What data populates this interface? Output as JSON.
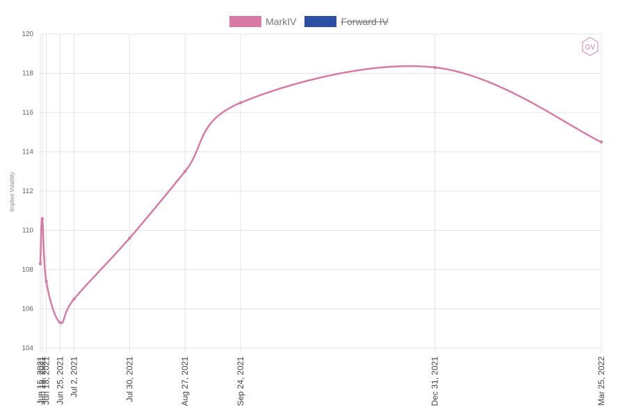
{
  "legend": {
    "items": [
      {
        "label": "MarkIV",
        "color": "#d97aa6",
        "hidden": false
      },
      {
        "label": "Forward IV",
        "color": "#2c4fa3",
        "hidden": true
      }
    ]
  },
  "logo": {
    "text": "GV",
    "color": "#d97aa6"
  },
  "chart_data": {
    "type": "line",
    "ylabel": "Implied Volatility",
    "xlabel": "",
    "ylim": [
      104,
      120
    ],
    "yticks": [
      104,
      106,
      108,
      110,
      112,
      114,
      116,
      118,
      120
    ],
    "grid": true,
    "legend_position": "top-center",
    "categories": [
      "Jun 15, 2021",
      "Jun 16, 2021",
      "Jun 18, 2021",
      "Jun 25, 2021",
      "Jul 2, 2021",
      "Jul 30, 2021",
      "Aug 27, 2021",
      "Sep 24, 2021",
      "Dec 31, 2021",
      "Mar 25, 2022"
    ],
    "series": [
      {
        "name": "MarkIV",
        "color": "#d97aa6",
        "values": [
          108.3,
          110.6,
          107.4,
          105.3,
          106.5,
          109.6,
          113.0,
          116.5,
          118.3,
          114.5
        ]
      }
    ]
  }
}
